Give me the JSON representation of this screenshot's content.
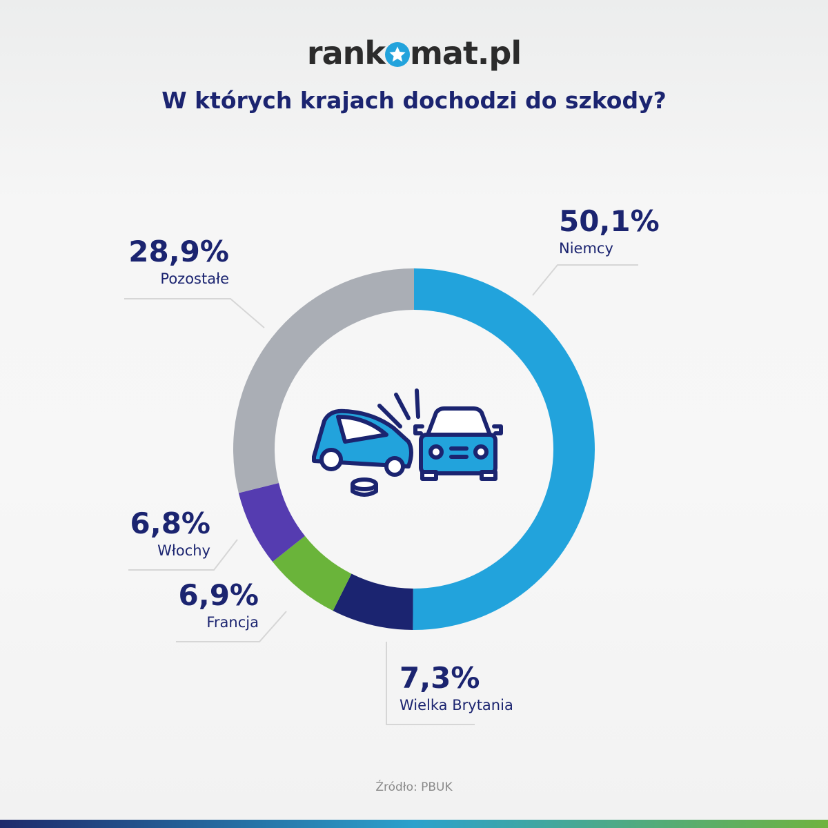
{
  "logo": {
    "text_left": "rank",
    "text_right": "mat.pl",
    "full": "rankomat.pl"
  },
  "title": "W których krajach dochodzi do szkody?",
  "source": "Źródło: PBUK",
  "chart_data": {
    "type": "pie",
    "donut": true,
    "title": "W których krajach dochodzi do szkody?",
    "start": "top",
    "direction": "clockwise",
    "slices": [
      {
        "label": "Niemcy",
        "value": 50.1,
        "display": "50,1%",
        "color": "#22a3dc"
      },
      {
        "label": "Wielka Brytania",
        "value": 7.3,
        "display": "7,3%",
        "color": "#1b2470"
      },
      {
        "label": "Francja",
        "value": 6.9,
        "display": "6,9%",
        "color": "#6ab43a"
      },
      {
        "label": "Włochy",
        "value": 6.8,
        "display": "6,8%",
        "color": "#553cb0"
      },
      {
        "label": "Pozostałe",
        "value": 28.9,
        "display": "28,9%",
        "color": "#aaaeb5"
      }
    ],
    "center_icon": "car-crash-icon"
  }
}
